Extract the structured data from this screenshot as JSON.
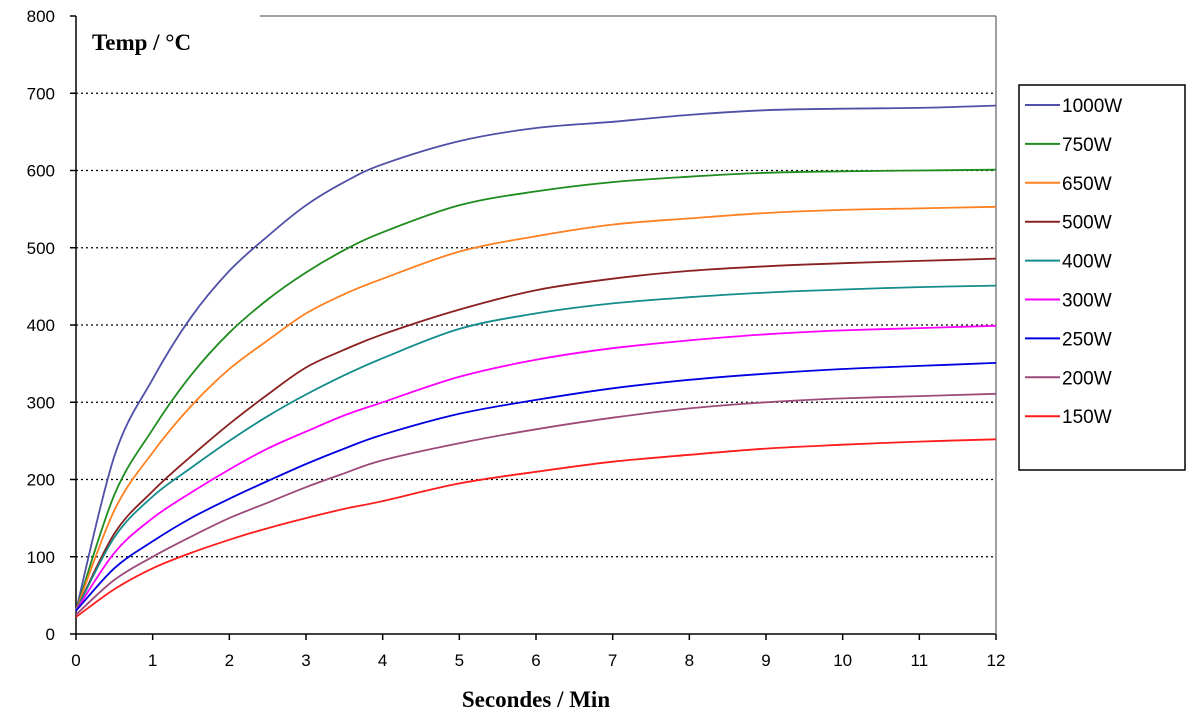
{
  "chart_data": {
    "type": "line",
    "ylabel": "Temp / °C",
    "xlabel": "Secondes / Min",
    "xlim": [
      0,
      12
    ],
    "ylim": [
      0,
      800
    ],
    "x_ticks": [
      "0",
      "1",
      "2",
      "3",
      "4",
      "5",
      "6",
      "7",
      "8",
      "9",
      "10",
      "11",
      "12"
    ],
    "y_ticks": [
      "0",
      "100",
      "200",
      "300",
      "400",
      "500",
      "600",
      "700",
      "800"
    ],
    "grid": "horizontal dotted",
    "legend_position": "right",
    "x": [
      0,
      0.5,
      1,
      1.5,
      2,
      2.5,
      3,
      3.5,
      4,
      5,
      6,
      7,
      8,
      9,
      10,
      11,
      12
    ],
    "series": [
      {
        "name": "1000W",
        "color": "#5050a8",
        "values": [
          30,
          230,
          330,
          410,
          470,
          515,
          555,
          585,
          608,
          638,
          655,
          663,
          672,
          678,
          680,
          681,
          684
        ]
      },
      {
        "name": "750W",
        "color": "#1e8c1e",
        "values": [
          30,
          180,
          265,
          335,
          390,
          433,
          468,
          497,
          520,
          555,
          573,
          585,
          592,
          597,
          599,
          600,
          601
        ]
      },
      {
        "name": "650W",
        "color": "#ff8020",
        "values": [
          30,
          160,
          235,
          295,
          343,
          380,
          415,
          440,
          460,
          495,
          515,
          530,
          538,
          545,
          549,
          551,
          553
        ]
      },
      {
        "name": "500W",
        "color": "#8b2020",
        "values": [
          30,
          130,
          185,
          230,
          272,
          310,
          345,
          368,
          388,
          420,
          445,
          460,
          470,
          476,
          480,
          483,
          486
        ]
      },
      {
        "name": "400W",
        "color": "#148c8c",
        "values": [
          30,
          125,
          178,
          215,
          250,
          282,
          310,
          335,
          357,
          395,
          415,
          428,
          436,
          442,
          446,
          449,
          451
        ]
      },
      {
        "name": "300W",
        "color": "#ff00ff",
        "values": [
          30,
          105,
          150,
          183,
          213,
          240,
          262,
          283,
          300,
          333,
          355,
          370,
          380,
          388,
          393,
          396,
          399
        ]
      },
      {
        "name": "250W",
        "color": "#0000e0",
        "values": [
          30,
          85,
          120,
          150,
          175,
          198,
          220,
          240,
          258,
          285,
          303,
          318,
          329,
          337,
          343,
          347,
          351
        ]
      },
      {
        "name": "200W",
        "color": "#9c4a7a",
        "values": [
          25,
          70,
          100,
          126,
          150,
          170,
          190,
          208,
          225,
          247,
          265,
          280,
          292,
          300,
          305,
          308,
          311
        ]
      },
      {
        "name": "150W",
        "color": "#ff1c1c",
        "values": [
          22,
          58,
          85,
          105,
          122,
          137,
          150,
          162,
          172,
          195,
          210,
          223,
          232,
          240,
          245,
          249,
          252
        ]
      }
    ]
  }
}
